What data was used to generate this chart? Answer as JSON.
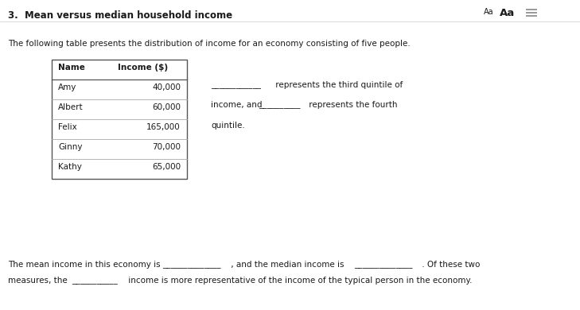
{
  "title": "3.  Mean versus median household income",
  "bg_color": "#ffffff",
  "text_color": "#1a1a1a",
  "font_family": "DejaVu Sans",
  "title_fontsize": 8.5,
  "body_fontsize": 7.5,
  "table_headers": [
    "Name",
    "Income ($)"
  ],
  "table_rows": [
    [
      "Amy",
      "40,000"
    ],
    [
      "Albert",
      "60,000"
    ],
    [
      "Felix",
      "165,000"
    ],
    [
      "Ginny",
      "70,000"
    ],
    [
      "Kathy",
      "65,000"
    ]
  ],
  "intro_text": "The following table presents the distribution of income for an economy consisting of five people.",
  "q_line1_a": "____________",
  "q_line1_b": " represents the third quintile of",
  "q_line2_a": "income, and ",
  "q_line2_b": "__________",
  "q_line2_c": " represents the fourth",
  "q_line3": "quintile.",
  "b_line1_a": "The mean income in this economy is ",
  "b_line1_b": "______________",
  "b_line1_c": " , and the median income is ",
  "b_line1_d": "______________",
  "b_line1_e": " . Of these two",
  "b_line2_a": "measures, the ",
  "b_line2_b": "___________",
  "b_line2_c": " income is more representative of the income of the typical person in the economy."
}
